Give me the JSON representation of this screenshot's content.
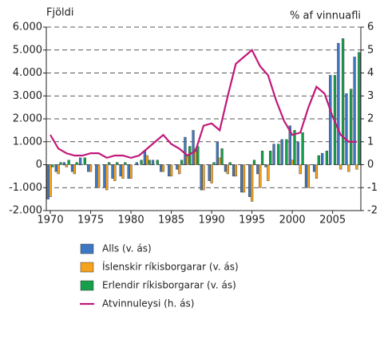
{
  "chart_data": {
    "type": "bar",
    "ylabel": "Fjöldi",
    "y2label": "% af vinnuafli",
    "x": [
      1970,
      1971,
      1972,
      1973,
      1974,
      1975,
      1976,
      1977,
      1978,
      1979,
      1980,
      1981,
      1982,
      1983,
      1984,
      1985,
      1986,
      1987,
      1988,
      1989,
      1990,
      1991,
      1992,
      1993,
      1994,
      1995,
      1996,
      1997,
      1998,
      1999,
      2000,
      2001,
      2002,
      2003,
      2004,
      2005,
      2006,
      2007,
      2008
    ],
    "xlim": [
      1969.5,
      2008.5
    ],
    "xticks": [
      1970,
      1975,
      1980,
      1985,
      1990,
      1995,
      2000,
      2005
    ],
    "ylim": [
      -2000,
      6000
    ],
    "yticks": [
      {
        "value": -2000,
        "label": "-2.000"
      },
      {
        "value": -1000,
        "label": "-1.000"
      },
      0,
      {
        "value": 1000,
        "label": "1.000"
      },
      {
        "value": 2000,
        "label": "2.000"
      },
      {
        "value": 3000,
        "label": "3.000"
      },
      {
        "value": 4000,
        "label": "4.000"
      },
      {
        "value": 5000,
        "label": "5.000"
      },
      {
        "value": 6000,
        "label": "6.000"
      }
    ],
    "y2lim": [
      -2,
      6
    ],
    "y2ticks": [
      -2,
      -1,
      0,
      1,
      2,
      3,
      4,
      5,
      6
    ],
    "grid": true,
    "series": [
      {
        "name": "Alls (v. ás)",
        "color": "#3f78c2",
        "values": [
          -1500,
          -300,
          100,
          -300,
          300,
          -300,
          -1000,
          -1000,
          -600,
          -500,
          -600,
          100,
          600,
          200,
          -300,
          -500,
          -200,
          1200,
          1500,
          -1100,
          -700,
          1000,
          -300,
          -500,
          -1200,
          -1400,
          -400,
          -100,
          900,
          1100,
          1700,
          1000,
          -1000,
          -300,
          500,
          3900,
          5300,
          3100,
          4700
        ]
      },
      {
        "name": "Íslenskir ríkisborgarar (v. ás)",
        "color": "#f5a21e",
        "values": [
          -1400,
          -400,
          -100,
          -400,
          0,
          -300,
          -1000,
          -1100,
          -700,
          -600,
          -600,
          0,
          400,
          0,
          -300,
          -500,
          -400,
          400,
          700,
          -1100,
          -800,
          300,
          -400,
          -500,
          -1200,
          -1600,
          -1000,
          -700,
          0,
          0,
          200,
          -400,
          -1000,
          -600,
          0,
          0,
          -200,
          -300,
          -200
        ]
      },
      {
        "name": "Erlendir ríkisborgarar (v. ás)",
        "color": "#17a04c",
        "values": [
          -100,
          100,
          200,
          100,
          300,
          0,
          0,
          100,
          100,
          100,
          0,
          200,
          200,
          200,
          0,
          0,
          200,
          800,
          800,
          0,
          100,
          700,
          100,
          0,
          0,
          200,
          600,
          600,
          900,
          1100,
          1500,
          1400,
          0,
          400,
          600,
          3900,
          5500,
          3300,
          4900
        ]
      },
      {
        "name": "Atvinnuleysi (h. ás)",
        "color": "#c2187a",
        "type": "line",
        "axis": "y2",
        "values": [
          1.3,
          0.7,
          0.5,
          0.4,
          0.4,
          0.5,
          0.5,
          0.3,
          0.4,
          0.4,
          0.3,
          0.4,
          0.7,
          1.0,
          1.3,
          0.9,
          0.7,
          0.4,
          0.6,
          1.7,
          1.8,
          1.5,
          3.0,
          4.4,
          4.7,
          5.0,
          4.3,
          3.9,
          2.8,
          1.9,
          1.3,
          1.4,
          2.5,
          3.4,
          3.1,
          2.1,
          1.3,
          1.0,
          1.0
        ]
      }
    ]
  }
}
